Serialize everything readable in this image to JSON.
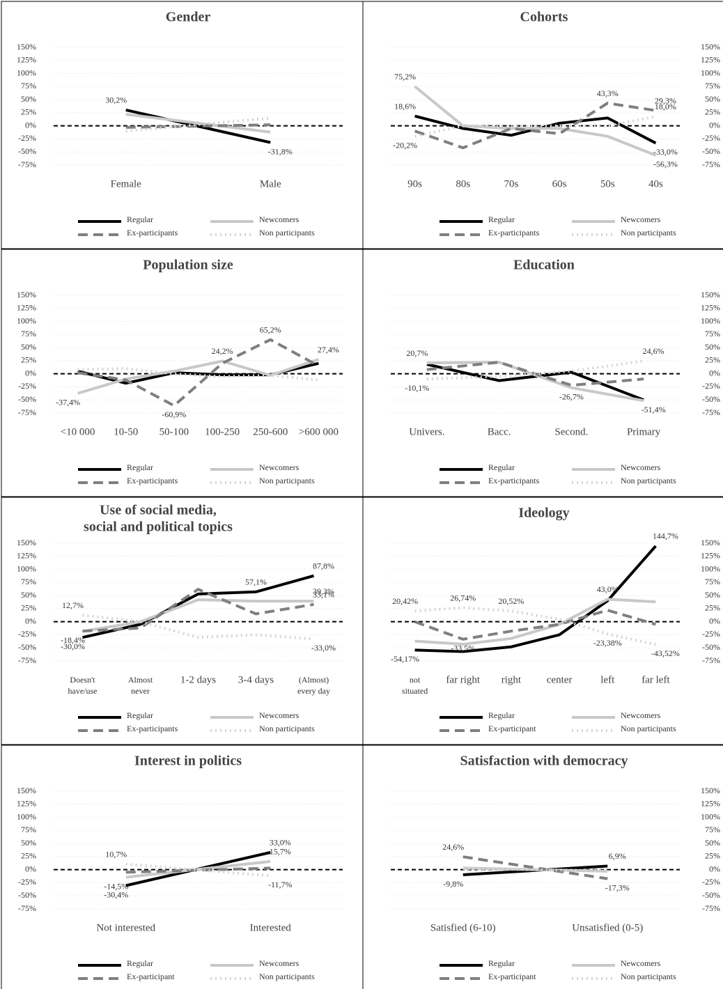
{
  "chart_data": [
    {
      "type": "line",
      "title": "Gender",
      "axis_side": "left",
      "grid": true,
      "categories": [
        "Female",
        "Male"
      ],
      "ylim": [
        -75,
        150
      ],
      "yticks": [
        {
          "value": -75,
          "label": "-75%"
        },
        {
          "value": -50,
          "label": "-50%"
        },
        {
          "value": -25,
          "label": "-25%"
        },
        {
          "value": 0,
          "label": "0%"
        },
        {
          "value": 25,
          "label": "25%"
        },
        {
          "value": 50,
          "label": "50%"
        },
        {
          "value": 75,
          "label": "75%"
        },
        {
          "value": 100,
          "label": "100%"
        },
        {
          "value": 125,
          "label": "125%"
        },
        {
          "value": 150,
          "label": "150%"
        }
      ],
      "series": [
        {
          "name": "Regular",
          "color": "#000000",
          "dash": "solid",
          "values": [
            30.2,
            -31.8
          ],
          "value_labels": [
            "30,2%",
            "-31,8%"
          ]
        },
        {
          "name": "Newcomers",
          "color": "#c8c8c8",
          "dash": "solid",
          "values": [
            22,
            -12
          ],
          "value_labels": [
            null,
            null
          ]
        },
        {
          "name": "Ex-participants",
          "color": "#7f7f7f",
          "dash": "dashed",
          "values": [
            -3,
            2
          ],
          "value_labels": [
            null,
            null
          ]
        },
        {
          "name": "Non participants",
          "color": "#d4d4d4",
          "dash": "dotted",
          "values": [
            -10,
            15
          ],
          "value_labels": [
            null,
            null
          ]
        }
      ]
    },
    {
      "type": "line",
      "title": "Cohorts",
      "axis_side": "right",
      "grid": true,
      "categories": [
        "90s",
        "80s",
        "70s",
        "60s",
        "50s",
        "40s"
      ],
      "ylim": [
        -75,
        150
      ],
      "yticks": [
        {
          "value": -75,
          "label": "-75%"
        },
        {
          "value": -50,
          "label": "-50%"
        },
        {
          "value": -25,
          "label": "-25%"
        },
        {
          "value": 0,
          "label": "0%"
        },
        {
          "value": 25,
          "label": "25%"
        },
        {
          "value": 50,
          "label": "50%"
        },
        {
          "value": 75,
          "label": "75%"
        },
        {
          "value": 100,
          "label": "100%"
        },
        {
          "value": 125,
          "label": "125%"
        },
        {
          "value": 150,
          "label": "150%"
        }
      ],
      "series": [
        {
          "name": "Regular",
          "color": "#000000",
          "dash": "solid",
          "values": [
            18.6,
            -5,
            -18,
            5,
            15,
            -33.0
          ],
          "value_labels": [
            "18,6%",
            null,
            null,
            null,
            null,
            "-33,0%"
          ]
        },
        {
          "name": "Newcomers",
          "color": "#c8c8c8",
          "dash": "solid",
          "values": [
            75.2,
            0,
            -5,
            -5,
            -20,
            -56.3
          ],
          "value_labels": [
            "75,2%",
            null,
            null,
            null,
            null,
            "-56,3%"
          ]
        },
        {
          "name": "Ex-participants",
          "color": "#7f7f7f",
          "dash": "dashed",
          "values": [
            -10,
            -42,
            -5,
            -15,
            43.3,
            29.3
          ],
          "value_labels": [
            null,
            null,
            null,
            null,
            "43,3%",
            "29,3%"
          ]
        },
        {
          "name": "Non participants",
          "color": "#d4d4d4",
          "dash": "dotted",
          "values": [
            -20.2,
            0,
            0,
            0,
            0,
            18.0
          ],
          "value_labels": [
            "-20,2%",
            null,
            null,
            null,
            null,
            "18,0%"
          ]
        }
      ]
    },
    {
      "type": "line",
      "title": "Population size",
      "axis_side": "left",
      "grid": true,
      "categories": [
        "<10 000",
        "10-50",
        "50-100",
        "100-250",
        "250-600",
        ">600 000"
      ],
      "ylim": [
        -75,
        150
      ],
      "yticks": [
        {
          "value": -75,
          "label": "-75%"
        },
        {
          "value": -50,
          "label": "-50%"
        },
        {
          "value": -25,
          "label": "-25%"
        },
        {
          "value": 0,
          "label": "0%"
        },
        {
          "value": 25,
          "label": "25%"
        },
        {
          "value": 50,
          "label": "50%"
        },
        {
          "value": 75,
          "label": "75%"
        },
        {
          "value": 100,
          "label": "100%"
        },
        {
          "value": 125,
          "label": "125%"
        },
        {
          "value": 150,
          "label": "150%"
        }
      ],
      "series": [
        {
          "name": "Regular",
          "color": "#000000",
          "dash": "solid",
          "values": [
            5,
            -18,
            2,
            -2,
            -2,
            20
          ],
          "value_labels": [
            null,
            null,
            null,
            null,
            null,
            null
          ]
        },
        {
          "name": "Newcomers",
          "color": "#c8c8c8",
          "dash": "solid",
          "values": [
            -37.4,
            -10,
            5,
            24.2,
            -3,
            27.4
          ],
          "value_labels": [
            "-37,4%",
            null,
            null,
            "24,2%",
            null,
            "27,4%"
          ]
        },
        {
          "name": "Ex-participants",
          "color": "#7f7f7f",
          "dash": "dashed",
          "values": [
            2,
            -12,
            -60.9,
            20,
            65.2,
            15
          ],
          "value_labels": [
            null,
            null,
            "-60,9%",
            null,
            "65,2%",
            null
          ]
        },
        {
          "name": "Non participants",
          "color": "#d4d4d4",
          "dash": "dotted",
          "values": [
            8,
            10,
            0,
            -5,
            -3,
            -12
          ],
          "value_labels": [
            null,
            null,
            null,
            null,
            null,
            null
          ]
        }
      ]
    },
    {
      "type": "line",
      "title": "Education",
      "axis_side": "right",
      "grid": true,
      "categories": [
        "Univers.",
        "Bacc.",
        "Second.",
        "Primary"
      ],
      "ylim": [
        -75,
        150
      ],
      "yticks": [
        {
          "value": -75,
          "label": "-75%"
        },
        {
          "value": -50,
          "label": "-50%"
        },
        {
          "value": -25,
          "label": "-25%"
        },
        {
          "value": 0,
          "label": "0%"
        },
        {
          "value": 25,
          "label": "25%"
        },
        {
          "value": 50,
          "label": "50%"
        },
        {
          "value": 75,
          "label": "75%"
        },
        {
          "value": 100,
          "label": "100%"
        },
        {
          "value": 125,
          "label": "125%"
        },
        {
          "value": 150,
          "label": "150%"
        }
      ],
      "series": [
        {
          "name": "Regular",
          "color": "#000000",
          "dash": "solid",
          "values": [
            18,
            -13,
            3,
            -50
          ],
          "value_labels": [
            null,
            null,
            null,
            null
          ]
        },
        {
          "name": "Newcomers",
          "color": "#c8c8c8",
          "dash": "solid",
          "values": [
            20.7,
            22,
            -26.7,
            -51.4
          ],
          "value_labels": [
            "20,7%",
            null,
            "-26,7%",
            "-51,4%"
          ]
        },
        {
          "name": "Ex-participants",
          "color": "#7f7f7f",
          "dash": "dashed",
          "values": [
            8,
            22,
            -22,
            -10
          ],
          "value_labels": [
            null,
            null,
            null,
            null
          ]
        },
        {
          "name": "Non participants",
          "color": "#d4d4d4",
          "dash": "dotted",
          "values": [
            -10.1,
            -5,
            5,
            24.6
          ],
          "value_labels": [
            "-10,1%",
            null,
            null,
            "24,6%"
          ]
        }
      ]
    },
    {
      "type": "line",
      "title": [
        "Use of social media,",
        "social and political topics"
      ],
      "axis_side": "left",
      "grid": true,
      "categories": [
        [
          "Doesn't",
          "have/use"
        ],
        [
          "Almost",
          "never"
        ],
        "1-2 days",
        "3-4 days",
        [
          "(Almost)",
          "every day"
        ]
      ],
      "ylim": [
        -75,
        150
      ],
      "yticks": [
        {
          "value": -75,
          "label": "-75%"
        },
        {
          "value": -50,
          "label": "-50%"
        },
        {
          "value": -25,
          "label": "-25%"
        },
        {
          "value": 0,
          "label": "0%"
        },
        {
          "value": 25,
          "label": "25%"
        },
        {
          "value": 50,
          "label": "50%"
        },
        {
          "value": 75,
          "label": "75%"
        },
        {
          "value": 100,
          "label": "100%"
        },
        {
          "value": 125,
          "label": "125%"
        },
        {
          "value": 150,
          "label": "150%"
        }
      ],
      "series": [
        {
          "name": "Regular",
          "color": "#000000",
          "dash": "solid",
          "values": [
            -30.0,
            -5,
            53,
            57.1,
            87.8
          ],
          "value_labels": [
            "-30,0%",
            null,
            null,
            "57,1%",
            "87,8%"
          ]
        },
        {
          "name": "Newcomers",
          "color": "#c8c8c8",
          "dash": "solid",
          "values": [
            -18.4,
            0,
            42,
            39.3,
            39.3
          ],
          "value_labels": [
            "-18,4%",
            null,
            null,
            null,
            "39,3%"
          ]
        },
        {
          "name": "Ex-participants",
          "color": "#7f7f7f",
          "dash": "dashed",
          "values": [
            -18,
            -12,
            62,
            15,
            33.1
          ],
          "value_labels": [
            null,
            null,
            null,
            null,
            "33,1%"
          ]
        },
        {
          "name": "Non participants",
          "color": "#d4d4d4",
          "dash": "dotted",
          "values": [
            12.7,
            0,
            -30,
            -25,
            -33.0
          ],
          "value_labels": [
            "12,7%",
            null,
            null,
            null,
            "-33,0%"
          ]
        }
      ]
    },
    {
      "type": "line",
      "title": "Ideology",
      "axis_side": "right",
      "grid": true,
      "categories": [
        [
          "not",
          "situated"
        ],
        "far right",
        "right",
        "center",
        "left",
        "far left"
      ],
      "ylim": [
        -75,
        150
      ],
      "yticks": [
        {
          "value": -75,
          "label": "-75%"
        },
        {
          "value": -50,
          "label": "-50%"
        },
        {
          "value": -25,
          "label": "-25%"
        },
        {
          "value": 0,
          "label": "0%"
        },
        {
          "value": 25,
          "label": "25%"
        },
        {
          "value": 50,
          "label": "50%"
        },
        {
          "value": 75,
          "label": "75%"
        },
        {
          "value": 100,
          "label": "100%"
        },
        {
          "value": 125,
          "label": "125%"
        },
        {
          "value": 150,
          "label": "150%"
        }
      ],
      "series": [
        {
          "name": "Regular",
          "color": "#000000",
          "dash": "solid",
          "values": [
            -54.17,
            -57,
            -48,
            -25,
            40,
            144.7
          ],
          "value_labels": [
            "-54,17%",
            null,
            null,
            null,
            null,
            "144,7%"
          ]
        },
        {
          "name": "Newcomers",
          "color": "#c8c8c8",
          "dash": "solid",
          "values": [
            -37,
            -43,
            -32,
            -5,
            43.0,
            38
          ],
          "value_labels": [
            null,
            null,
            null,
            null,
            "43,0%",
            null
          ]
        },
        {
          "name": "Ex-participant",
          "color": "#7f7f7f",
          "dash": "dashed",
          "values": [
            0,
            -33.5,
            -18,
            -5,
            22,
            -5
          ],
          "value_labels": [
            null,
            "-33,5%",
            null,
            null,
            null,
            null
          ]
        },
        {
          "name": "Non participants",
          "color": "#d4d4d4",
          "dash": "dotted",
          "values": [
            20.42,
            26.74,
            20.52,
            5,
            -23.38,
            -43.52
          ],
          "value_labels": [
            "20,42%",
            "26,74%",
            "20,52%",
            null,
            "-23,38%",
            "-43,52%"
          ]
        }
      ]
    },
    {
      "type": "line",
      "title": "Interest in politics",
      "axis_side": "left",
      "grid": true,
      "categories": [
        "Not interested",
        "Interested"
      ],
      "ylim": [
        -75,
        150
      ],
      "yticks": [
        {
          "value": -75,
          "label": "-75%"
        },
        {
          "value": -50,
          "label": "-50%"
        },
        {
          "value": -25,
          "label": "-25%"
        },
        {
          "value": 0,
          "label": "0%"
        },
        {
          "value": 25,
          "label": "25%"
        },
        {
          "value": 50,
          "label": "50%"
        },
        {
          "value": 75,
          "label": "75%"
        },
        {
          "value": 100,
          "label": "100%"
        },
        {
          "value": 125,
          "label": "125%"
        },
        {
          "value": 150,
          "label": "150%"
        }
      ],
      "series": [
        {
          "name": "Regular",
          "color": "#000000",
          "dash": "solid",
          "values": [
            -30.4,
            33.0
          ],
          "value_labels": [
            "-30,4%",
            "33,0%"
          ]
        },
        {
          "name": "Newcomers",
          "color": "#c8c8c8",
          "dash": "solid",
          "values": [
            -14.5,
            15.7
          ],
          "value_labels": [
            "-14,5%",
            "15,7%"
          ]
        },
        {
          "name": "Ex-participant",
          "color": "#7f7f7f",
          "dash": "dashed",
          "values": [
            -5,
            3
          ],
          "value_labels": [
            null,
            null
          ]
        },
        {
          "name": "Non participants",
          "color": "#d4d4d4",
          "dash": "dotted",
          "values": [
            10.7,
            -11.7
          ],
          "value_labels": [
            "10,7%",
            "-11,7%"
          ]
        }
      ]
    },
    {
      "type": "line",
      "title": "Satisfaction with democracy",
      "axis_side": "right",
      "grid": true,
      "categories": [
        "Satisfied (6-10)",
        "Unsatisfied (0-5)"
      ],
      "ylim": [
        -75,
        150
      ],
      "yticks": [
        {
          "value": -75,
          "label": "-75%"
        },
        {
          "value": -50,
          "label": "-50%"
        },
        {
          "value": -25,
          "label": "-25%"
        },
        {
          "value": 0,
          "label": "0%"
        },
        {
          "value": 25,
          "label": "25%"
        },
        {
          "value": 50,
          "label": "50%"
        },
        {
          "value": 75,
          "label": "75%"
        },
        {
          "value": 100,
          "label": "100%"
        },
        {
          "value": 125,
          "label": "125%"
        },
        {
          "value": 150,
          "label": "150%"
        }
      ],
      "series": [
        {
          "name": "Regular",
          "color": "#000000",
          "dash": "solid",
          "values": [
            -9.8,
            6.9
          ],
          "value_labels": [
            "-9,8%",
            "6,9%"
          ]
        },
        {
          "name": "Newcomers",
          "color": "#c8c8c8",
          "dash": "solid",
          "values": [
            3,
            -3
          ],
          "value_labels": [
            null,
            null
          ]
        },
        {
          "name": "Ex-participant",
          "color": "#7f7f7f",
          "dash": "dashed",
          "values": [
            24.6,
            -17.3
          ],
          "value_labels": [
            "24,6%",
            "-17,3%"
          ]
        },
        {
          "name": "Non participants",
          "color": "#d4d4d4",
          "dash": "dotted",
          "values": [
            2,
            -2
          ],
          "value_labels": [
            null,
            null
          ]
        }
      ]
    }
  ]
}
